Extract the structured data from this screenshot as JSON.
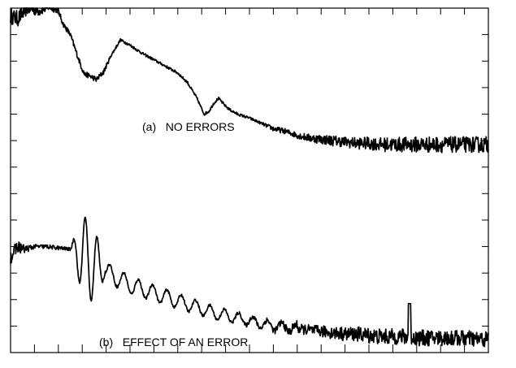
{
  "chart_data": {
    "type": "line",
    "grid": false,
    "xlim": [
      0,
      20
    ],
    "ylim": [
      0,
      13
    ],
    "x_tick_count": 21,
    "y_tick_count": 14,
    "series": [
      {
        "panel": "a",
        "x": [
          0,
          0.3,
          0.7,
          1.2,
          1.6,
          2.0,
          2.2,
          2.5,
          2.8,
          3.0,
          3.1,
          3.3,
          3.6,
          3.9,
          4.2,
          4.6,
          5.0,
          5.5,
          6.0,
          6.5,
          7.0,
          7.4,
          7.8,
          8.1,
          8.3,
          8.5,
          8.7,
          8.8,
          9.0,
          9.2,
          9.5,
          10.0,
          10.5,
          11.0,
          11.5,
          12.0,
          12.5,
          13.0,
          13.5,
          14.0,
          14.5,
          15.0,
          15.5,
          16.0,
          16.5,
          17.0,
          17.5,
          18.0,
          18.5,
          19.0,
          19.5,
          20.0
        ],
        "y": [
          12.7,
          12.6,
          13.0,
          12.9,
          13.05,
          12.9,
          12.4,
          12.0,
          11.2,
          10.7,
          10.5,
          10.45,
          10.3,
          10.6,
          11.2,
          11.8,
          11.6,
          11.3,
          11.05,
          10.8,
          10.55,
          10.2,
          9.6,
          9.0,
          9.1,
          9.4,
          9.6,
          9.5,
          9.3,
          9.15,
          9.0,
          8.85,
          8.65,
          8.45,
          8.35,
          8.2,
          8.1,
          8.05,
          8.0,
          7.95,
          7.9,
          7.9,
          7.85,
          7.85,
          7.85,
          7.85,
          7.85,
          7.85,
          7.85,
          7.85,
          7.85,
          7.85
        ],
        "noise": [
          0.3,
          0.3,
          0.25,
          0.2,
          0.15,
          0.1,
          0.1,
          0.1,
          0.1,
          0.1,
          0.1,
          0.1,
          0.1,
          0.1,
          0.05,
          0.05,
          0.05,
          0.05,
          0.05,
          0.05,
          0.05,
          0.05,
          0.05,
          0.05,
          0.05,
          0.05,
          0.05,
          0.05,
          0.05,
          0.05,
          0.05,
          0.05,
          0.05,
          0.1,
          0.1,
          0.12,
          0.15,
          0.18,
          0.2,
          0.2,
          0.22,
          0.24,
          0.26,
          0.28,
          0.28,
          0.3,
          0.3,
          0.3,
          0.3,
          0.3,
          0.3,
          0.32
        ]
      },
      {
        "panel": "b",
        "x": [
          0,
          0.3,
          0.6,
          1.0,
          1.5,
          2.0,
          2.5,
          3.0,
          3.5,
          4.0,
          4.5,
          5.0,
          5.5,
          6.0,
          6.5,
          7.0,
          7.5,
          8.0,
          8.5,
          9.0,
          9.5,
          10.0,
          10.5,
          11.0,
          11.5,
          12.0,
          12.5,
          13.0,
          13.5,
          14.0,
          14.5,
          15.0,
          15.5,
          16.0,
          16.5,
          17.0,
          17.5,
          18.0,
          18.5,
          19.0,
          19.5,
          20.0
        ],
        "y": [
          3.6,
          4.0,
          3.9,
          4.0,
          4.0,
          3.95,
          3.9,
          3.7,
          3.35,
          3.05,
          2.8,
          2.55,
          2.4,
          2.25,
          2.1,
          1.95,
          1.8,
          1.65,
          1.5,
          1.4,
          1.3,
          1.2,
          1.1,
          1.0,
          0.95,
          0.9,
          0.85,
          0.8,
          0.75,
          0.7,
          0.7,
          0.65,
          0.6,
          0.6,
          0.6,
          0.55,
          0.55,
          0.55,
          0.55,
          0.55,
          0.5,
          0.5
        ],
        "noise": [
          0.25,
          0.25,
          0.15,
          0.08,
          0.08,
          0.08,
          0.06,
          0.05,
          0.05,
          0.05,
          0.05,
          0.05,
          0.05,
          0.05,
          0.05,
          0.05,
          0.05,
          0.05,
          0.05,
          0.06,
          0.06,
          0.08,
          0.1,
          0.12,
          0.15,
          0.18,
          0.2,
          0.22,
          0.24,
          0.26,
          0.28,
          0.3,
          0.3,
          0.3,
          0.3,
          0.3,
          0.3,
          0.3,
          0.3,
          0.3,
          0.3,
          0.3
        ],
        "oscillations": [
          {
            "start": 2.5,
            "end": 4.0,
            "amplitude": 1.55,
            "period": 0.5
          },
          {
            "start": 4.0,
            "end": 12.0,
            "amplitude": 0.35,
            "period": 0.6
          }
        ],
        "spike": {
          "x": 16.7,
          "peak": 1.85
        }
      }
    ],
    "annotations": [
      "(a)   NO ERRORS",
      "(b)   EFFECT OF AN ERROR"
    ]
  }
}
